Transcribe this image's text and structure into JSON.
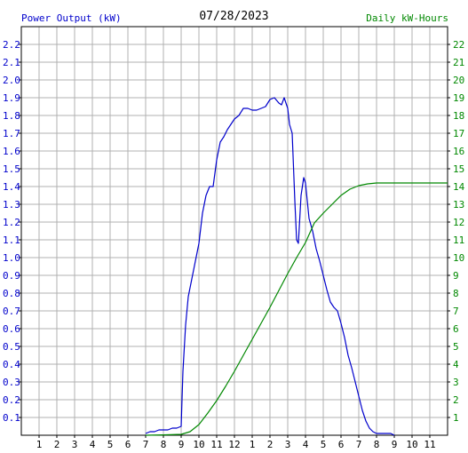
{
  "chart_data": {
    "type": "line",
    "title": "07/28/2023",
    "left_axis_title": "Power Output (kW)",
    "right_axis_title": "Daily kW-Hours",
    "x_tick_labels": [
      "1",
      "2",
      "3",
      "4",
      "5",
      "6",
      "7",
      "8",
      "9",
      "10",
      "11",
      "12",
      "1",
      "2",
      "3",
      "4",
      "5",
      "6",
      "7",
      "8",
      "9",
      "10",
      "11"
    ],
    "xlim": [
      0,
      24
    ],
    "ylim_left": [
      0,
      2.3
    ],
    "ylim_right": [
      0,
      23
    ],
    "left_ticks": [
      "0.1",
      "0.2",
      "0.3",
      "0.4",
      "0.5",
      "0.6",
      "0.7",
      "0.8",
      "0.9",
      "1.0",
      "1.1",
      "1.2",
      "1.3",
      "1.4",
      "1.5",
      "1.6",
      "1.7",
      "1.8",
      "1.9",
      "2.0",
      "2.1",
      "2.2"
    ],
    "right_ticks": [
      "1",
      "2",
      "3",
      "4",
      "5",
      "6",
      "7",
      "8",
      "9",
      "10",
      "11",
      "12",
      "13",
      "14",
      "15",
      "16",
      "17",
      "18",
      "19",
      "20",
      "21",
      "22"
    ],
    "grid": true,
    "series": [
      {
        "name": "Power Output (kW)",
        "axis": "left",
        "color": "#0000cc",
        "points": [
          [
            7.0,
            0.01
          ],
          [
            7.25,
            0.02
          ],
          [
            7.5,
            0.02
          ],
          [
            7.75,
            0.03
          ],
          [
            8.0,
            0.03
          ],
          [
            8.25,
            0.03
          ],
          [
            8.5,
            0.04
          ],
          [
            8.75,
            0.04
          ],
          [
            9.0,
            0.05
          ],
          [
            9.1,
            0.36
          ],
          [
            9.25,
            0.62
          ],
          [
            9.4,
            0.78
          ],
          [
            9.6,
            0.88
          ],
          [
            9.8,
            0.98
          ],
          [
            10.0,
            1.08
          ],
          [
            10.2,
            1.25
          ],
          [
            10.4,
            1.35
          ],
          [
            10.6,
            1.4
          ],
          [
            10.8,
            1.4
          ],
          [
            11.0,
            1.55
          ],
          [
            11.2,
            1.65
          ],
          [
            11.4,
            1.68
          ],
          [
            11.6,
            1.72
          ],
          [
            11.8,
            1.75
          ],
          [
            12.0,
            1.78
          ],
          [
            12.25,
            1.8
          ],
          [
            12.5,
            1.84
          ],
          [
            12.75,
            1.84
          ],
          [
            13.0,
            1.83
          ],
          [
            13.25,
            1.83
          ],
          [
            13.5,
            1.84
          ],
          [
            13.75,
            1.85
          ],
          [
            14.0,
            1.89
          ],
          [
            14.25,
            1.9
          ],
          [
            14.5,
            1.87
          ],
          [
            14.65,
            1.86
          ],
          [
            14.8,
            1.9
          ],
          [
            15.0,
            1.84
          ],
          [
            15.1,
            1.75
          ],
          [
            15.25,
            1.7
          ],
          [
            15.4,
            1.32
          ],
          [
            15.5,
            1.1
          ],
          [
            15.6,
            1.08
          ],
          [
            15.75,
            1.35
          ],
          [
            15.9,
            1.45
          ],
          [
            16.0,
            1.42
          ],
          [
            16.2,
            1.22
          ],
          [
            16.4,
            1.15
          ],
          [
            16.6,
            1.05
          ],
          [
            16.8,
            0.98
          ],
          [
            17.0,
            0.9
          ],
          [
            17.2,
            0.82
          ],
          [
            17.4,
            0.75
          ],
          [
            17.6,
            0.72
          ],
          [
            17.8,
            0.7
          ],
          [
            18.0,
            0.63
          ],
          [
            18.2,
            0.55
          ],
          [
            18.4,
            0.45
          ],
          [
            18.6,
            0.38
          ],
          [
            18.8,
            0.3
          ],
          [
            19.0,
            0.22
          ],
          [
            19.2,
            0.14
          ],
          [
            19.4,
            0.08
          ],
          [
            19.6,
            0.04
          ],
          [
            19.8,
            0.02
          ],
          [
            20.0,
            0.01
          ],
          [
            20.4,
            0.01
          ],
          [
            20.8,
            0.01
          ],
          [
            21.0,
            0.0
          ]
        ]
      },
      {
        "name": "Daily kW-Hours",
        "axis": "right",
        "color": "#008800",
        "points": [
          [
            7.0,
            0.0
          ],
          [
            8.0,
            0.02
          ],
          [
            9.0,
            0.05
          ],
          [
            9.5,
            0.2
          ],
          [
            10.0,
            0.6
          ],
          [
            10.5,
            1.25
          ],
          [
            11.0,
            1.95
          ],
          [
            11.5,
            2.75
          ],
          [
            12.0,
            3.6
          ],
          [
            12.5,
            4.5
          ],
          [
            13.0,
            5.4
          ],
          [
            13.5,
            6.3
          ],
          [
            14.0,
            7.2
          ],
          [
            14.5,
            8.15
          ],
          [
            15.0,
            9.1
          ],
          [
            15.5,
            10.0
          ],
          [
            16.0,
            10.85
          ],
          [
            16.5,
            11.95
          ],
          [
            17.0,
            12.5
          ],
          [
            17.5,
            13.0
          ],
          [
            18.0,
            13.5
          ],
          [
            18.5,
            13.85
          ],
          [
            19.0,
            14.05
          ],
          [
            19.5,
            14.15
          ],
          [
            20.0,
            14.2
          ],
          [
            22.0,
            14.2
          ],
          [
            24.0,
            14.2
          ]
        ]
      }
    ]
  }
}
